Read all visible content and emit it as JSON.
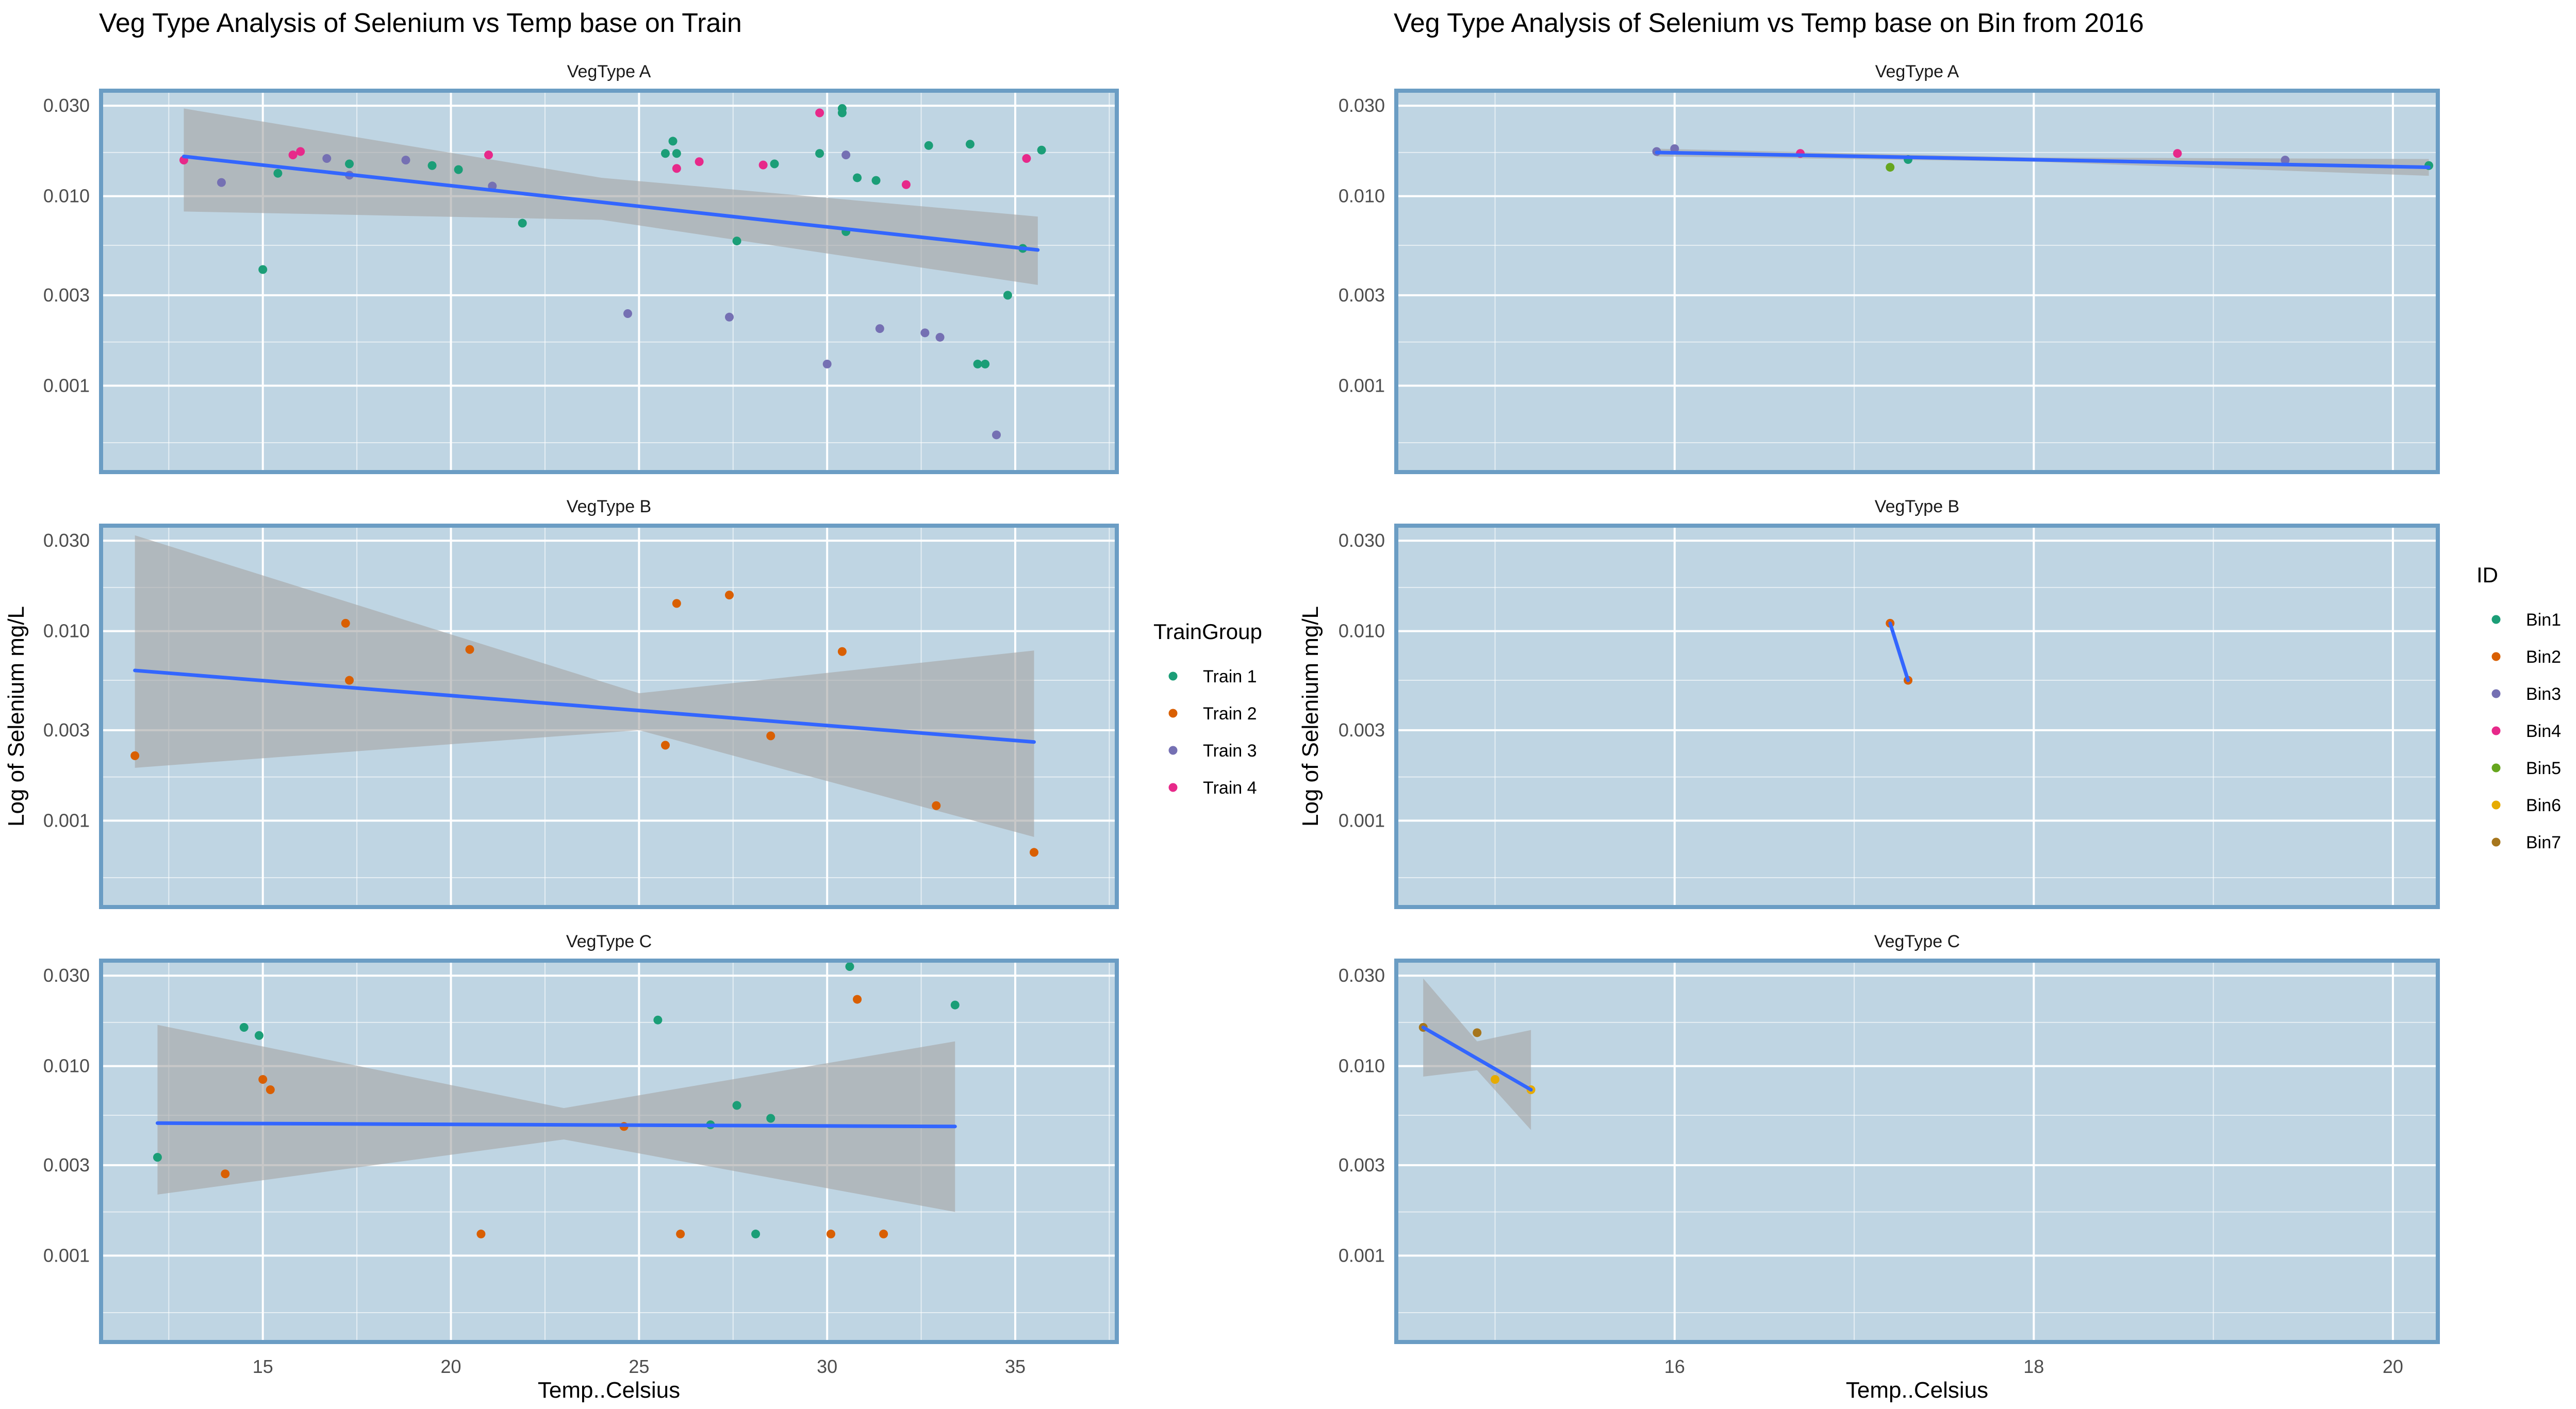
{
  "chart_data": [
    {
      "type": "scatter",
      "title": "Veg Type Analysis of Selenium vs Temp base on Train",
      "xlabel": "Temp..Celsius",
      "ylabel": "Log of Selenium mg/L",
      "y_scale": "log10",
      "xlim": [
        10.7,
        37.7
      ],
      "ylim": [
        0.00035,
        0.036
      ],
      "x_ticks": [
        "15",
        "20",
        "25",
        "30",
        "35"
      ],
      "y_ticks": [
        "0.001",
        "0.003",
        "0.010",
        "0.030"
      ],
      "legend": {
        "title": "TrainGroup",
        "placement": "right"
      },
      "series": [
        {
          "name": "Train 1",
          "color": "#1B9E77"
        },
        {
          "name": "Train 2",
          "color": "#D95F02"
        },
        {
          "name": "Train 3",
          "color": "#7570B3"
        },
        {
          "name": "Train 4",
          "color": "#E7298A"
        }
      ],
      "trend_color": "#3366FF",
      "band_color": "#a6a6a6",
      "panels": [
        {
          "label": "VegType A",
          "trend": {
            "x": [
              12.9,
              35.6
            ],
            "y": [
              0.0162,
              0.0052
            ]
          },
          "band": {
            "x": [
              12.9,
              24.0,
              35.6
            ],
            "upper": [
              0.029,
              0.0125,
              0.0078
            ],
            "lower": [
              0.0083,
              0.0075,
              0.0034
            ]
          },
          "points": [
            {
              "x": 12.9,
              "y": 0.0155,
              "g": 3
            },
            {
              "x": 13.9,
              "y": 0.0118,
              "g": 2
            },
            {
              "x": 15.0,
              "y": 0.0041,
              "g": 0
            },
            {
              "x": 15.4,
              "y": 0.0132,
              "g": 0
            },
            {
              "x": 15.8,
              "y": 0.0165,
              "g": 3
            },
            {
              "x": 16.0,
              "y": 0.0172,
              "g": 3
            },
            {
              "x": 16.7,
              "y": 0.0158,
              "g": 2
            },
            {
              "x": 17.3,
              "y": 0.0129,
              "g": 2
            },
            {
              "x": 17.3,
              "y": 0.0148,
              "g": 0
            },
            {
              "x": 18.8,
              "y": 0.0155,
              "g": 2
            },
            {
              "x": 19.5,
              "y": 0.0145,
              "g": 0
            },
            {
              "x": 20.2,
              "y": 0.0138,
              "g": 0
            },
            {
              "x": 21.0,
              "y": 0.0165,
              "g": 3
            },
            {
              "x": 21.1,
              "y": 0.0113,
              "g": 2
            },
            {
              "x": 21.9,
              "y": 0.0072,
              "g": 0
            },
            {
              "x": 24.7,
              "y": 0.0024,
              "g": 2
            },
            {
              "x": 25.7,
              "y": 0.0168,
              "g": 0
            },
            {
              "x": 25.9,
              "y": 0.0195,
              "g": 0
            },
            {
              "x": 26.0,
              "y": 0.014,
              "g": 3
            },
            {
              "x": 26.0,
              "y": 0.0168,
              "g": 0
            },
            {
              "x": 26.6,
              "y": 0.0152,
              "g": 3
            },
            {
              "x": 27.4,
              "y": 0.0023,
              "g": 2
            },
            {
              "x": 27.6,
              "y": 0.0058,
              "g": 0
            },
            {
              "x": 28.3,
              "y": 0.0146,
              "g": 3
            },
            {
              "x": 28.6,
              "y": 0.0148,
              "g": 0
            },
            {
              "x": 29.8,
              "y": 0.0168,
              "g": 0
            },
            {
              "x": 29.8,
              "y": 0.0275,
              "g": 3
            },
            {
              "x": 30.0,
              "y": 0.0013,
              "g": 2
            },
            {
              "x": 30.4,
              "y": 0.029,
              "g": 0
            },
            {
              "x": 30.4,
              "y": 0.0275,
              "g": 0
            },
            {
              "x": 30.5,
              "y": 0.0065,
              "g": 0
            },
            {
              "x": 30.5,
              "y": 0.0165,
              "g": 2
            },
            {
              "x": 30.8,
              "y": 0.0125,
              "g": 0
            },
            {
              "x": 31.3,
              "y": 0.0121,
              "g": 0
            },
            {
              "x": 31.4,
              "y": 0.002,
              "g": 2
            },
            {
              "x": 32.1,
              "y": 0.0115,
              "g": 3
            },
            {
              "x": 32.6,
              "y": 0.0019,
              "g": 2
            },
            {
              "x": 32.7,
              "y": 0.0185,
              "g": 0
            },
            {
              "x": 33.0,
              "y": 0.0018,
              "g": 2
            },
            {
              "x": 33.8,
              "y": 0.0188,
              "g": 0
            },
            {
              "x": 34.0,
              "y": 0.0013,
              "g": 0
            },
            {
              "x": 34.2,
              "y": 0.0013,
              "g": 0
            },
            {
              "x": 34.5,
              "y": 0.00055,
              "g": 2
            },
            {
              "x": 34.8,
              "y": 0.003,
              "g": 0
            },
            {
              "x": 35.2,
              "y": 0.0053,
              "g": 0
            },
            {
              "x": 35.3,
              "y": 0.0158,
              "g": 3
            },
            {
              "x": 35.7,
              "y": 0.0175,
              "g": 0
            }
          ]
        },
        {
          "label": "VegType B",
          "trend": {
            "x": [
              11.6,
              35.5
            ],
            "y": [
              0.0062,
              0.0026
            ]
          },
          "band": {
            "x": [
              11.6,
              25.0,
              35.5
            ],
            "upper": [
              0.032,
              0.0047,
              0.0079
            ],
            "lower": [
              0.0019,
              0.003,
              0.00082
            ]
          },
          "points": [
            {
              "x": 11.6,
              "y": 0.0022,
              "g": 1
            },
            {
              "x": 17.2,
              "y": 0.011,
              "g": 1
            },
            {
              "x": 17.3,
              "y": 0.0055,
              "g": 1
            },
            {
              "x": 20.5,
              "y": 0.008,
              "g": 1
            },
            {
              "x": 25.7,
              "y": 0.0025,
              "g": 1
            },
            {
              "x": 26.0,
              "y": 0.014,
              "g": 1
            },
            {
              "x": 27.4,
              "y": 0.0155,
              "g": 1
            },
            {
              "x": 28.5,
              "y": 0.0028,
              "g": 1
            },
            {
              "x": 30.4,
              "y": 0.0078,
              "g": 1
            },
            {
              "x": 32.9,
              "y": 0.0012,
              "g": 1
            },
            {
              "x": 35.5,
              "y": 0.00068,
              "g": 1
            }
          ]
        },
        {
          "label": "VegType C",
          "trend": {
            "x": [
              12.2,
              33.4
            ],
            "y": [
              0.005,
              0.0048
            ]
          },
          "band": {
            "x": [
              12.2,
              23.0,
              33.4
            ],
            "upper": [
              0.0165,
              0.006,
              0.0135
            ],
            "lower": [
              0.0021,
              0.0041,
              0.0017
            ]
          },
          "points": [
            {
              "x": 12.2,
              "y": 0.0033,
              "g": 0
            },
            {
              "x": 14.0,
              "y": 0.0027,
              "g": 1
            },
            {
              "x": 14.5,
              "y": 0.016,
              "g": 0
            },
            {
              "x": 14.9,
              "y": 0.0145,
              "g": 0
            },
            {
              "x": 15.0,
              "y": 0.0085,
              "g": 1
            },
            {
              "x": 15.2,
              "y": 0.0075,
              "g": 1
            },
            {
              "x": 20.8,
              "y": 0.0013,
              "g": 1
            },
            {
              "x": 24.6,
              "y": 0.0048,
              "g": 1
            },
            {
              "x": 25.5,
              "y": 0.0175,
              "g": 0
            },
            {
              "x": 26.1,
              "y": 0.0013,
              "g": 1
            },
            {
              "x": 26.9,
              "y": 0.0049,
              "g": 0
            },
            {
              "x": 27.6,
              "y": 0.0062,
              "g": 0
            },
            {
              "x": 28.1,
              "y": 0.0013,
              "g": 0
            },
            {
              "x": 28.5,
              "y": 0.0053,
              "g": 0
            },
            {
              "x": 30.1,
              "y": 0.0013,
              "g": 1
            },
            {
              "x": 30.6,
              "y": 0.0335,
              "g": 0
            },
            {
              "x": 30.8,
              "y": 0.0225,
              "g": 1
            },
            {
              "x": 31.5,
              "y": 0.0013,
              "g": 1
            },
            {
              "x": 33.4,
              "y": 0.021,
              "g": 0
            }
          ]
        }
      ]
    },
    {
      "type": "scatter",
      "title": "Veg Type Analysis of Selenium vs Temp base on Bin from 2016",
      "xlabel": "Temp..Celsius",
      "ylabel": "Log of Selenium mg/L",
      "y_scale": "log10",
      "xlim": [
        14.45,
        20.25
      ],
      "ylim": [
        0.00035,
        0.036
      ],
      "x_ticks": [
        "16",
        "18",
        "20"
      ],
      "y_ticks": [
        "0.001",
        "0.003",
        "0.010",
        "0.030"
      ],
      "legend": {
        "title": "ID",
        "placement": "right"
      },
      "series": [
        {
          "name": "Bin1",
          "color": "#1B9E77"
        },
        {
          "name": "Bin2",
          "color": "#D95F02"
        },
        {
          "name": "Bin3",
          "color": "#7570B3"
        },
        {
          "name": "Bin4",
          "color": "#E7298A"
        },
        {
          "name": "Bin5",
          "color": "#66A61E"
        },
        {
          "name": "Bin6",
          "color": "#E6AB02"
        },
        {
          "name": "Bin7",
          "color": "#A6761D"
        }
      ],
      "trend_color": "#3366FF",
      "band_color": "#a6a6a6",
      "panels": [
        {
          "label": "VegType A",
          "trend": {
            "x": [
              15.9,
              20.2
            ],
            "y": [
              0.017,
              0.0142
            ]
          },
          "band": {
            "x": [
              15.9,
              18.0,
              20.2
            ],
            "upper": [
              0.0178,
              0.016,
              0.0157
            ],
            "lower": [
              0.0162,
              0.0152,
              0.0128
            ]
          },
          "points": [
            {
              "x": 15.9,
              "y": 0.0172,
              "g": 2
            },
            {
              "x": 16.0,
              "y": 0.0178,
              "g": 2
            },
            {
              "x": 16.7,
              "y": 0.0168,
              "g": 3
            },
            {
              "x": 17.2,
              "y": 0.0142,
              "g": 4
            },
            {
              "x": 17.3,
              "y": 0.0156,
              "g": 0
            },
            {
              "x": 18.8,
              "y": 0.0168,
              "g": 3
            },
            {
              "x": 19.4,
              "y": 0.0155,
              "g": 2
            },
            {
              "x": 20.2,
              "y": 0.0145,
              "g": 0
            }
          ]
        },
        {
          "label": "VegType B",
          "trend": {
            "x": [
              17.2,
              17.3
            ],
            "y": [
              0.011,
              0.0055
            ]
          },
          "band": null,
          "points": [
            {
              "x": 17.2,
              "y": 0.011,
              "g": 1
            },
            {
              "x": 17.3,
              "y": 0.0055,
              "g": 1
            }
          ]
        },
        {
          "label": "VegType C",
          "trend": {
            "x": [
              14.6,
              15.2
            ],
            "y": [
              0.016,
              0.0075
            ]
          },
          "band": {
            "x": [
              14.6,
              14.9,
              15.2
            ],
            "upper": [
              0.029,
              0.0135,
              0.0155
            ],
            "lower": [
              0.0088,
              0.0095,
              0.0046
            ]
          },
          "points": [
            {
              "x": 14.6,
              "y": 0.016,
              "g": 6
            },
            {
              "x": 14.9,
              "y": 0.015,
              "g": 6
            },
            {
              "x": 15.0,
              "y": 0.0085,
              "g": 5
            },
            {
              "x": 15.2,
              "y": 0.0075,
              "g": 5
            }
          ]
        }
      ]
    }
  ]
}
